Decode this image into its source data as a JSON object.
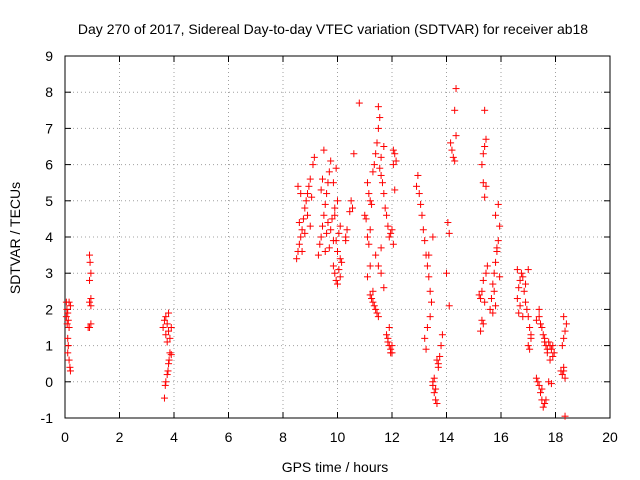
{
  "chart_data": {
    "type": "scatter",
    "title": "Day 270 of 2017, Sidereal Day-to-day VTEC variation (SDTVAR) for receiver ab18",
    "xlabel": "GPS time / hours",
    "ylabel": "SDTVAR / TECUs",
    "xlim": [
      0,
      20
    ],
    "ylim": [
      -1,
      9
    ],
    "x_ticks": [
      0,
      2,
      4,
      6,
      8,
      10,
      12,
      14,
      16,
      18,
      20
    ],
    "y_ticks": [
      -1,
      0,
      1,
      2,
      3,
      4,
      5,
      6,
      7,
      8,
      9
    ],
    "grid": true,
    "marker": "+",
    "color": "#ff0000",
    "series": [
      {
        "name": "SDTVAR",
        "points": [
          [
            0.05,
            2.2
          ],
          [
            0.07,
            2.0
          ],
          [
            0.1,
            1.9
          ],
          [
            0.12,
            1.7
          ],
          [
            0.15,
            1.5
          ],
          [
            0.05,
            1.8
          ],
          [
            0.1,
            1.2
          ],
          [
            0.12,
            1.0
          ],
          [
            0.15,
            0.6
          ],
          [
            0.18,
            0.4
          ],
          [
            0.2,
            0.3
          ],
          [
            0.1,
            0.8
          ],
          [
            0.2,
            2.1
          ],
          [
            0.15,
            2.2
          ],
          [
            0.08,
            1.6
          ],
          [
            0.9,
            3.5
          ],
          [
            0.92,
            3.3
          ],
          [
            0.95,
            3.0
          ],
          [
            0.9,
            2.8
          ],
          [
            0.95,
            2.3
          ],
          [
            0.9,
            2.2
          ],
          [
            0.95,
            2.1
          ],
          [
            0.9,
            1.5
          ],
          [
            0.95,
            1.6
          ],
          [
            0.85,
            1.5
          ],
          [
            3.65,
            -0.45
          ],
          [
            3.68,
            -0.1
          ],
          [
            3.7,
            0.0
          ],
          [
            3.75,
            0.2
          ],
          [
            3.78,
            0.3
          ],
          [
            3.8,
            0.5
          ],
          [
            3.82,
            0.6
          ],
          [
            3.85,
            0.8
          ],
          [
            3.9,
            0.75
          ],
          [
            3.6,
            1.5
          ],
          [
            3.65,
            1.7
          ],
          [
            3.7,
            1.8
          ],
          [
            3.75,
            1.6
          ],
          [
            3.8,
            1.4
          ],
          [
            3.85,
            1.2
          ],
          [
            3.9,
            1.5
          ],
          [
            3.7,
            1.3
          ],
          [
            3.8,
            1.9
          ],
          [
            3.75,
            1.1
          ],
          [
            8.5,
            3.4
          ],
          [
            8.55,
            3.6
          ],
          [
            8.6,
            3.8
          ],
          [
            8.65,
            4.0
          ],
          [
            8.7,
            4.2
          ],
          [
            8.75,
            4.5
          ],
          [
            8.8,
            4.8
          ],
          [
            8.85,
            5.0
          ],
          [
            8.9,
            5.2
          ],
          [
            8.95,
            5.4
          ],
          [
            9.0,
            5.6
          ],
          [
            9.1,
            6.0
          ],
          [
            9.15,
            6.2
          ],
          [
            8.6,
            4.4
          ],
          [
            8.7,
            3.6
          ],
          [
            8.8,
            4.1
          ],
          [
            8.9,
            4.6
          ],
          [
            9.0,
            4.3
          ],
          [
            9.05,
            5.1
          ],
          [
            8.55,
            5.4
          ],
          [
            8.65,
            5.2
          ],
          [
            9.3,
            3.5
          ],
          [
            9.35,
            3.8
          ],
          [
            9.4,
            4.0
          ],
          [
            9.45,
            4.3
          ],
          [
            9.5,
            4.6
          ],
          [
            9.55,
            4.9
          ],
          [
            9.6,
            5.2
          ],
          [
            9.65,
            5.5
          ],
          [
            9.7,
            5.8
          ],
          [
            9.75,
            6.1
          ],
          [
            9.5,
            6.4
          ],
          [
            9.45,
            5.6
          ],
          [
            9.6,
            4.1
          ],
          [
            9.7,
            3.7
          ],
          [
            9.8,
            4.5
          ],
          [
            9.85,
            3.9
          ],
          [
            9.9,
            4.8
          ],
          [
            9.4,
            5.3
          ],
          [
            9.55,
            3.6
          ],
          [
            9.65,
            4.4
          ],
          [
            9.75,
            4.2
          ],
          [
            9.85,
            3.2
          ],
          [
            9.9,
            3.0
          ],
          [
            9.95,
            2.8
          ],
          [
            10.0,
            2.7
          ],
          [
            10.05,
            3.1
          ],
          [
            10.1,
            3.4
          ],
          [
            10.0,
            3.6
          ],
          [
            9.95,
            3.9
          ],
          [
            10.05,
            4.1
          ],
          [
            10.1,
            4.3
          ],
          [
            9.9,
            4.6
          ],
          [
            10.0,
            5.0
          ],
          [
            9.85,
            5.5
          ],
          [
            9.95,
            5.9
          ],
          [
            10.1,
            2.9
          ],
          [
            10.15,
            3.3
          ],
          [
            10.3,
            4.0
          ],
          [
            10.35,
            4.2
          ],
          [
            10.3,
            3.9
          ],
          [
            10.45,
            4.7
          ],
          [
            10.5,
            5.0
          ],
          [
            10.55,
            4.8
          ],
          [
            10.6,
            6.3
          ],
          [
            10.8,
            7.7
          ],
          [
            11.0,
            4.6
          ],
          [
            11.05,
            4.5
          ],
          [
            11.1,
            4.0
          ],
          [
            11.15,
            3.8
          ],
          [
            11.2,
            4.2
          ],
          [
            11.1,
            5.5
          ],
          [
            11.15,
            5.2
          ],
          [
            11.2,
            5.0
          ],
          [
            11.25,
            4.9
          ],
          [
            11.3,
            5.8
          ],
          [
            11.35,
            6.0
          ],
          [
            11.4,
            6.3
          ],
          [
            11.45,
            6.6
          ],
          [
            11.5,
            7.0
          ],
          [
            11.55,
            7.3
          ],
          [
            11.5,
            7.6
          ],
          [
            11.6,
            5.7
          ],
          [
            11.65,
            5.5
          ],
          [
            11.7,
            5.2
          ],
          [
            11.75,
            4.8
          ],
          [
            11.8,
            4.6
          ],
          [
            11.85,
            4.3
          ],
          [
            11.9,
            4.0
          ],
          [
            11.6,
            6.2
          ],
          [
            11.7,
            6.5
          ],
          [
            11.55,
            5.9
          ],
          [
            11.2,
            2.4
          ],
          [
            11.25,
            2.3
          ],
          [
            11.3,
            2.2
          ],
          [
            11.35,
            2.1
          ],
          [
            11.4,
            2.0
          ],
          [
            11.45,
            1.9
          ],
          [
            11.5,
            1.8
          ],
          [
            11.3,
            2.5
          ],
          [
            11.4,
            3.5
          ],
          [
            11.5,
            3.2
          ],
          [
            11.6,
            3.0
          ],
          [
            11.7,
            2.6
          ],
          [
            11.6,
            3.7
          ],
          [
            11.2,
            3.2
          ],
          [
            11.1,
            2.9
          ],
          [
            11.8,
            1.3
          ],
          [
            11.85,
            1.2
          ],
          [
            11.9,
            1.0
          ],
          [
            11.95,
            0.9
          ],
          [
            12.0,
            0.8
          ],
          [
            11.9,
            1.5
          ],
          [
            11.85,
            1.1
          ],
          [
            12.0,
            1.0
          ],
          [
            11.95,
            0.8
          ],
          [
            12.05,
            6.0
          ],
          [
            12.1,
            6.3
          ],
          [
            12.15,
            6.1
          ],
          [
            12.05,
            6.4
          ],
          [
            12.1,
            5.3
          ],
          [
            12.0,
            4.2
          ],
          [
            12.05,
            3.8
          ],
          [
            11.95,
            4.1
          ],
          [
            12.9,
            5.4
          ],
          [
            12.95,
            5.7
          ],
          [
            13.0,
            5.2
          ],
          [
            13.05,
            4.9
          ],
          [
            13.1,
            4.6
          ],
          [
            13.15,
            4.2
          ],
          [
            13.2,
            3.9
          ],
          [
            13.25,
            3.5
          ],
          [
            13.3,
            3.2
          ],
          [
            13.35,
            2.9
          ],
          [
            13.4,
            2.5
          ],
          [
            13.45,
            2.2
          ],
          [
            13.5,
            4.0
          ],
          [
            13.3,
            1.5
          ],
          [
            13.2,
            1.2
          ],
          [
            13.25,
            0.9
          ],
          [
            13.4,
            1.8
          ],
          [
            13.35,
            3.5
          ],
          [
            13.5,
            -0.1
          ],
          [
            13.55,
            -0.3
          ],
          [
            13.6,
            -0.5
          ],
          [
            13.65,
            -0.6
          ],
          [
            13.55,
            0.1
          ],
          [
            13.5,
            0.0
          ],
          [
            13.6,
            -0.2
          ],
          [
            13.65,
            0.6
          ],
          [
            13.7,
            0.5
          ],
          [
            13.75,
            0.7
          ],
          [
            13.8,
            1.0
          ],
          [
            13.85,
            1.3
          ],
          [
            13.7,
            0.4
          ],
          [
            14.05,
            4.4
          ],
          [
            14.1,
            4.1
          ],
          [
            14.15,
            6.6
          ],
          [
            14.2,
            6.4
          ],
          [
            14.25,
            6.2
          ],
          [
            14.3,
            6.1
          ],
          [
            14.35,
            6.8
          ],
          [
            14.3,
            7.5
          ],
          [
            14.35,
            8.1
          ],
          [
            14.0,
            3.0
          ],
          [
            14.1,
            2.1
          ],
          [
            15.2,
            2.4
          ],
          [
            15.25,
            2.3
          ],
          [
            15.3,
            2.5
          ],
          [
            15.35,
            2.8
          ],
          [
            15.4,
            2.2
          ],
          [
            15.3,
            1.7
          ],
          [
            15.35,
            1.6
          ],
          [
            15.25,
            1.4
          ],
          [
            15.3,
            6.0
          ],
          [
            15.35,
            6.3
          ],
          [
            15.4,
            6.5
          ],
          [
            15.45,
            6.7
          ],
          [
            15.4,
            7.5
          ],
          [
            15.35,
            5.5
          ],
          [
            15.4,
            5.1
          ],
          [
            15.45,
            5.4
          ],
          [
            15.45,
            3.0
          ],
          [
            15.5,
            3.2
          ],
          [
            15.6,
            2.0
          ],
          [
            15.65,
            2.3
          ],
          [
            15.7,
            2.7
          ],
          [
            15.75,
            3.0
          ],
          [
            15.8,
            3.3
          ],
          [
            15.85,
            3.6
          ],
          [
            15.9,
            3.9
          ],
          [
            15.95,
            4.3
          ],
          [
            15.8,
            4.6
          ],
          [
            15.9,
            4.9
          ],
          [
            15.75,
            2.5
          ],
          [
            15.7,
            1.9
          ],
          [
            15.85,
            3.7
          ],
          [
            15.8,
            2.1
          ],
          [
            15.95,
            2.9
          ],
          [
            16.6,
            2.3
          ],
          [
            16.65,
            2.6
          ],
          [
            16.7,
            2.8
          ],
          [
            16.75,
            3.0
          ],
          [
            16.8,
            2.9
          ],
          [
            16.85,
            2.5
          ],
          [
            16.9,
            2.2
          ],
          [
            16.95,
            2.0
          ],
          [
            17.0,
            1.8
          ],
          [
            17.05,
            1.5
          ],
          [
            17.1,
            1.3
          ],
          [
            17.0,
            1.0
          ],
          [
            17.05,
            0.9
          ],
          [
            16.9,
            2.7
          ],
          [
            17.0,
            3.1
          ],
          [
            16.7,
            2.1
          ],
          [
            16.8,
            1.8
          ],
          [
            17.1,
            1.2
          ],
          [
            16.65,
            1.9
          ],
          [
            16.6,
            3.1
          ],
          [
            17.3,
            0.1
          ],
          [
            17.35,
            0.0
          ],
          [
            17.4,
            -0.1
          ],
          [
            17.45,
            -0.3
          ],
          [
            17.5,
            -0.5
          ],
          [
            17.55,
            -0.7
          ],
          [
            17.6,
            -0.6
          ],
          [
            17.65,
            -0.5
          ],
          [
            17.5,
            -0.2
          ],
          [
            17.4,
            1.8
          ],
          [
            17.45,
            1.6
          ],
          [
            17.5,
            1.5
          ],
          [
            17.4,
            2.0
          ],
          [
            17.3,
            1.7
          ],
          [
            17.55,
            1.3
          ],
          [
            17.6,
            1.2
          ],
          [
            17.65,
            1.0
          ],
          [
            17.7,
            0.9
          ],
          [
            17.75,
            1.1
          ],
          [
            17.8,
            1.0
          ],
          [
            17.85,
            0.9
          ],
          [
            17.9,
            1.0
          ],
          [
            17.95,
            0.8
          ],
          [
            17.6,
            1.1
          ],
          [
            17.7,
            0.8
          ],
          [
            17.8,
            0.6
          ],
          [
            17.75,
            0.0
          ],
          [
            17.85,
            -0.05
          ],
          [
            17.9,
            0.7
          ],
          [
            18.2,
            0.3
          ],
          [
            18.25,
            0.2
          ],
          [
            18.3,
            0.4
          ],
          [
            18.35,
            0.1
          ],
          [
            18.3,
            0.3
          ],
          [
            18.25,
            1.0
          ],
          [
            18.3,
            1.2
          ],
          [
            18.35,
            1.4
          ],
          [
            18.4,
            1.6
          ],
          [
            18.3,
            1.8
          ],
          [
            18.35,
            -0.95
          ]
        ]
      }
    ]
  }
}
